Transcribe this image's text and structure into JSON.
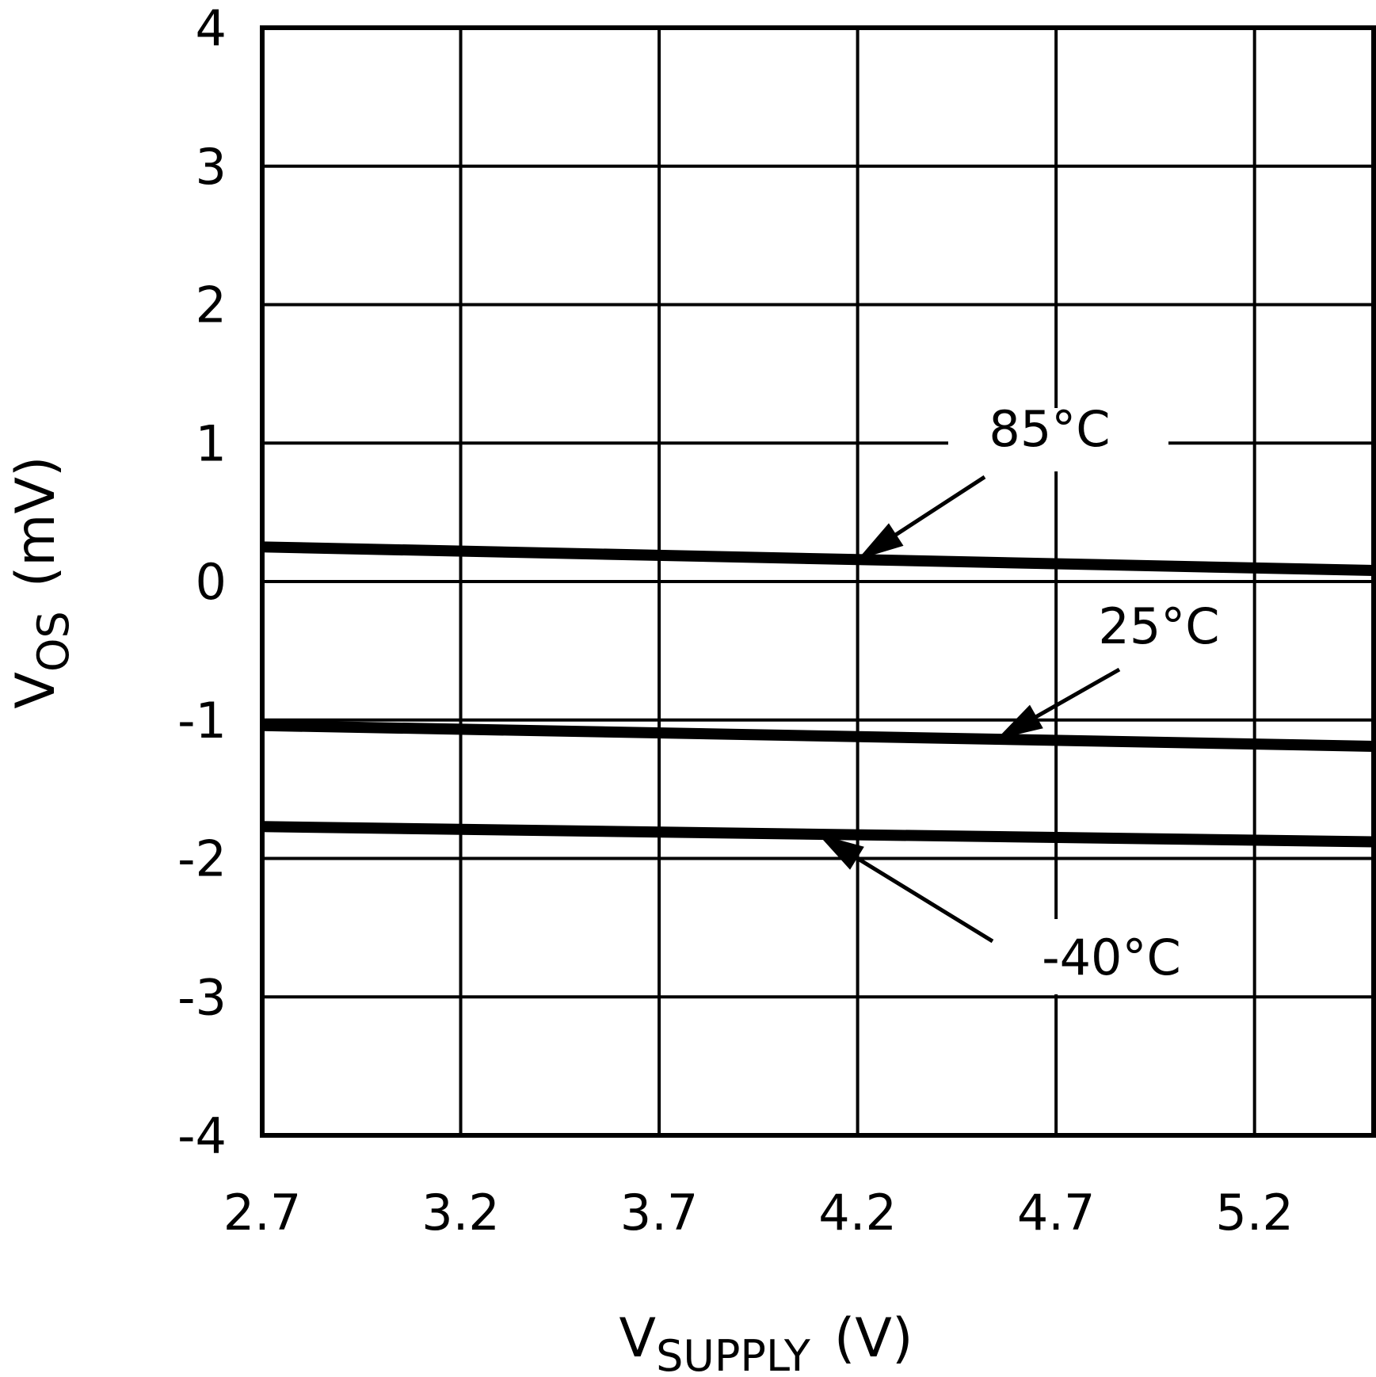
{
  "chart_data": {
    "type": "line",
    "xlabel": {
      "main": "V",
      "sub": "SUPPLY",
      "unit": "(V)"
    },
    "ylabel": {
      "main": "V",
      "sub": "OS",
      "unit": "(mV)"
    },
    "xlim": [
      2.7,
      5.5
    ],
    "ylim": [
      -4,
      4
    ],
    "x_ticks": [
      2.7,
      3.2,
      3.7,
      4.2,
      4.7,
      5.2
    ],
    "x_tick_labels": [
      "2.7",
      "3.2",
      "3.7",
      "4.2",
      "4.7",
      "5.2"
    ],
    "y_ticks": [
      -4,
      -3,
      -2,
      -1,
      0,
      1,
      2,
      3,
      4
    ],
    "y_tick_labels": [
      "-4",
      "-3",
      "-2",
      "-1",
      "0",
      "1",
      "2",
      "3",
      "4"
    ],
    "grid": true,
    "series": [
      {
        "name": "85°C",
        "x": [
          2.7,
          5.5
        ],
        "y": [
          0.25,
          0.08
        ]
      },
      {
        "name": "25°C",
        "x": [
          2.7,
          5.5
        ],
        "y": [
          -1.04,
          -1.19
        ]
      },
      {
        "name": "-40°C",
        "x": [
          2.7,
          5.5
        ],
        "y": [
          -1.77,
          -1.88
        ]
      }
    ],
    "annotations": [
      {
        "text": "85°C",
        "series": 0,
        "arrow_target_x": 4.2
      },
      {
        "text": "25°C",
        "series": 1,
        "arrow_target_x": 4.55
      },
      {
        "text": "-40°C",
        "series": 2,
        "arrow_target_x": 4.1
      }
    ]
  }
}
